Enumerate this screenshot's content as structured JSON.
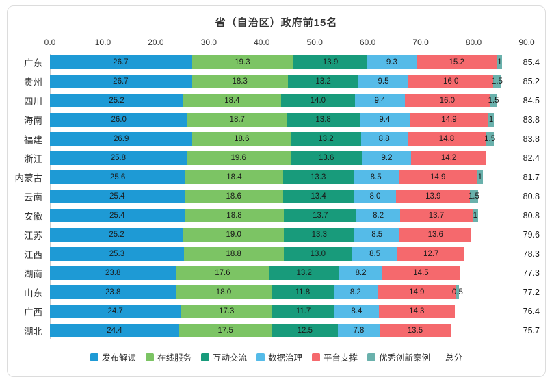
{
  "title": "省（自治区）政府前15名",
  "x_axis": {
    "ticks": [
      "0.0",
      "10.0",
      "20.0",
      "30.0",
      "40.0",
      "50.0",
      "60.0",
      "70.0",
      "80.0",
      "90.0"
    ],
    "min": 0,
    "max": 90
  },
  "legend": {
    "items": [
      {
        "label": "发布解读",
        "color": "#1E9AD5"
      },
      {
        "label": "在线服务",
        "color": "#7CC464"
      },
      {
        "label": "互动交流",
        "color": "#189B7B"
      },
      {
        "label": "数据治理",
        "color": "#55BBE8"
      },
      {
        "label": "平台支撑",
        "color": "#F5696D"
      },
      {
        "label": "优秀创新案例",
        "color": "#6AB1AC"
      },
      {
        "label": "总分",
        "color": null
      }
    ]
  },
  "chart_data": {
    "type": "bar",
    "orientation": "horizontal_stacked",
    "title": "省（自治区）政府前15名",
    "xlabel": "",
    "ylabel": "",
    "x_range": [
      0,
      90
    ],
    "grid": false,
    "legend_position": "bottom",
    "categories": [
      "广东",
      "贵州",
      "四川",
      "海南",
      "福建",
      "浙江",
      "内蒙古",
      "云南",
      "安徽",
      "江苏",
      "江西",
      "湖南",
      "山东",
      "广西",
      "湖北"
    ],
    "series": [
      {
        "name": "发布解读",
        "color": "#1E9AD5",
        "values": [
          26.7,
          26.7,
          25.2,
          26.0,
          26.9,
          25.8,
          25.6,
          25.4,
          25.4,
          25.2,
          25.3,
          23.8,
          23.8,
          24.7,
          24.4
        ],
        "labels": [
          "26.7",
          "26.7",
          "25.2",
          "26.0",
          "26.9",
          "25.8",
          "25.6",
          "25.4",
          "25.4",
          "25.2",
          "25.3",
          "23.8",
          "23.8",
          "24.7",
          "24.4"
        ]
      },
      {
        "name": "在线服务",
        "color": "#7CC464",
        "values": [
          19.3,
          18.3,
          18.4,
          18.7,
          18.6,
          19.6,
          18.4,
          18.6,
          18.8,
          19.0,
          18.8,
          17.6,
          18.0,
          17.3,
          17.5
        ],
        "labels": [
          "19.3",
          "18.3",
          "18.4",
          "18.7",
          "18.6",
          "19.6",
          "18.4",
          "18.6",
          "18.8",
          "19.0",
          "18.8",
          "17.6",
          "18.0",
          "17.3",
          "17.5"
        ]
      },
      {
        "name": "互动交流",
        "color": "#189B7B",
        "values": [
          13.9,
          13.2,
          14.0,
          13.8,
          13.2,
          13.6,
          13.3,
          13.4,
          13.7,
          13.3,
          13.0,
          13.2,
          11.8,
          11.7,
          12.5
        ],
        "labels": [
          "13.9",
          "13.2",
          "14.0",
          "13.8",
          "13.2",
          "13.6",
          "13.3",
          "13.4",
          "13.7",
          "13.3",
          "13.0",
          "13.2",
          "11.8",
          "11.7",
          "12.5"
        ]
      },
      {
        "name": "数据治理",
        "color": "#55BBE8",
        "values": [
          9.3,
          9.5,
          9.4,
          9.4,
          8.8,
          9.2,
          8.5,
          8.0,
          8.2,
          8.5,
          8.5,
          8.2,
          8.2,
          8.4,
          7.8
        ],
        "labels": [
          "9.3",
          "9.5",
          "9.4",
          "9.4",
          "8.8",
          "9.2",
          "8.5",
          "8.0",
          "8.2",
          "8.5",
          "8.5",
          "8.2",
          "8.2",
          "8.4",
          "7.8"
        ]
      },
      {
        "name": "平台支撑",
        "color": "#F5696D",
        "values": [
          15.2,
          16.0,
          16.0,
          14.9,
          14.8,
          14.2,
          14.9,
          13.9,
          13.7,
          13.6,
          12.7,
          14.5,
          14.9,
          14.3,
          13.5
        ],
        "labels": [
          "15.2",
          "16.0",
          "16.0",
          "14.9",
          "14.8",
          "14.2",
          "14.9",
          "13.9",
          "13.7",
          "13.6",
          "12.7",
          "14.5",
          "14.9",
          "14.3",
          "13.5"
        ]
      },
      {
        "name": "优秀创新案例",
        "color": "#6AB1AC",
        "values": [
          1.0,
          1.5,
          1.5,
          1.0,
          1.5,
          0,
          1.0,
          1.5,
          1.0,
          0,
          0,
          0,
          0.5,
          0,
          0
        ],
        "labels": [
          "1",
          "1.5",
          "1.5",
          "1",
          "1.5",
          "",
          "1",
          "1.5",
          "1",
          "",
          "",
          "",
          "0.5",
          "",
          ""
        ]
      }
    ],
    "totals": [
      85.4,
      85.2,
      84.5,
      83.8,
      83.8,
      82.4,
      81.7,
      80.8,
      80.8,
      79.6,
      78.3,
      77.3,
      77.2,
      76.4,
      75.7
    ],
    "total_labels": [
      "85.4",
      "85.2",
      "84.5",
      "83.8",
      "83.8",
      "82.4",
      "81.7",
      "80.8",
      "80.8",
      "79.6",
      "78.3",
      "77.3",
      "77.2",
      "76.4",
      "75.7"
    ],
    "totals_series_name": "总分"
  }
}
